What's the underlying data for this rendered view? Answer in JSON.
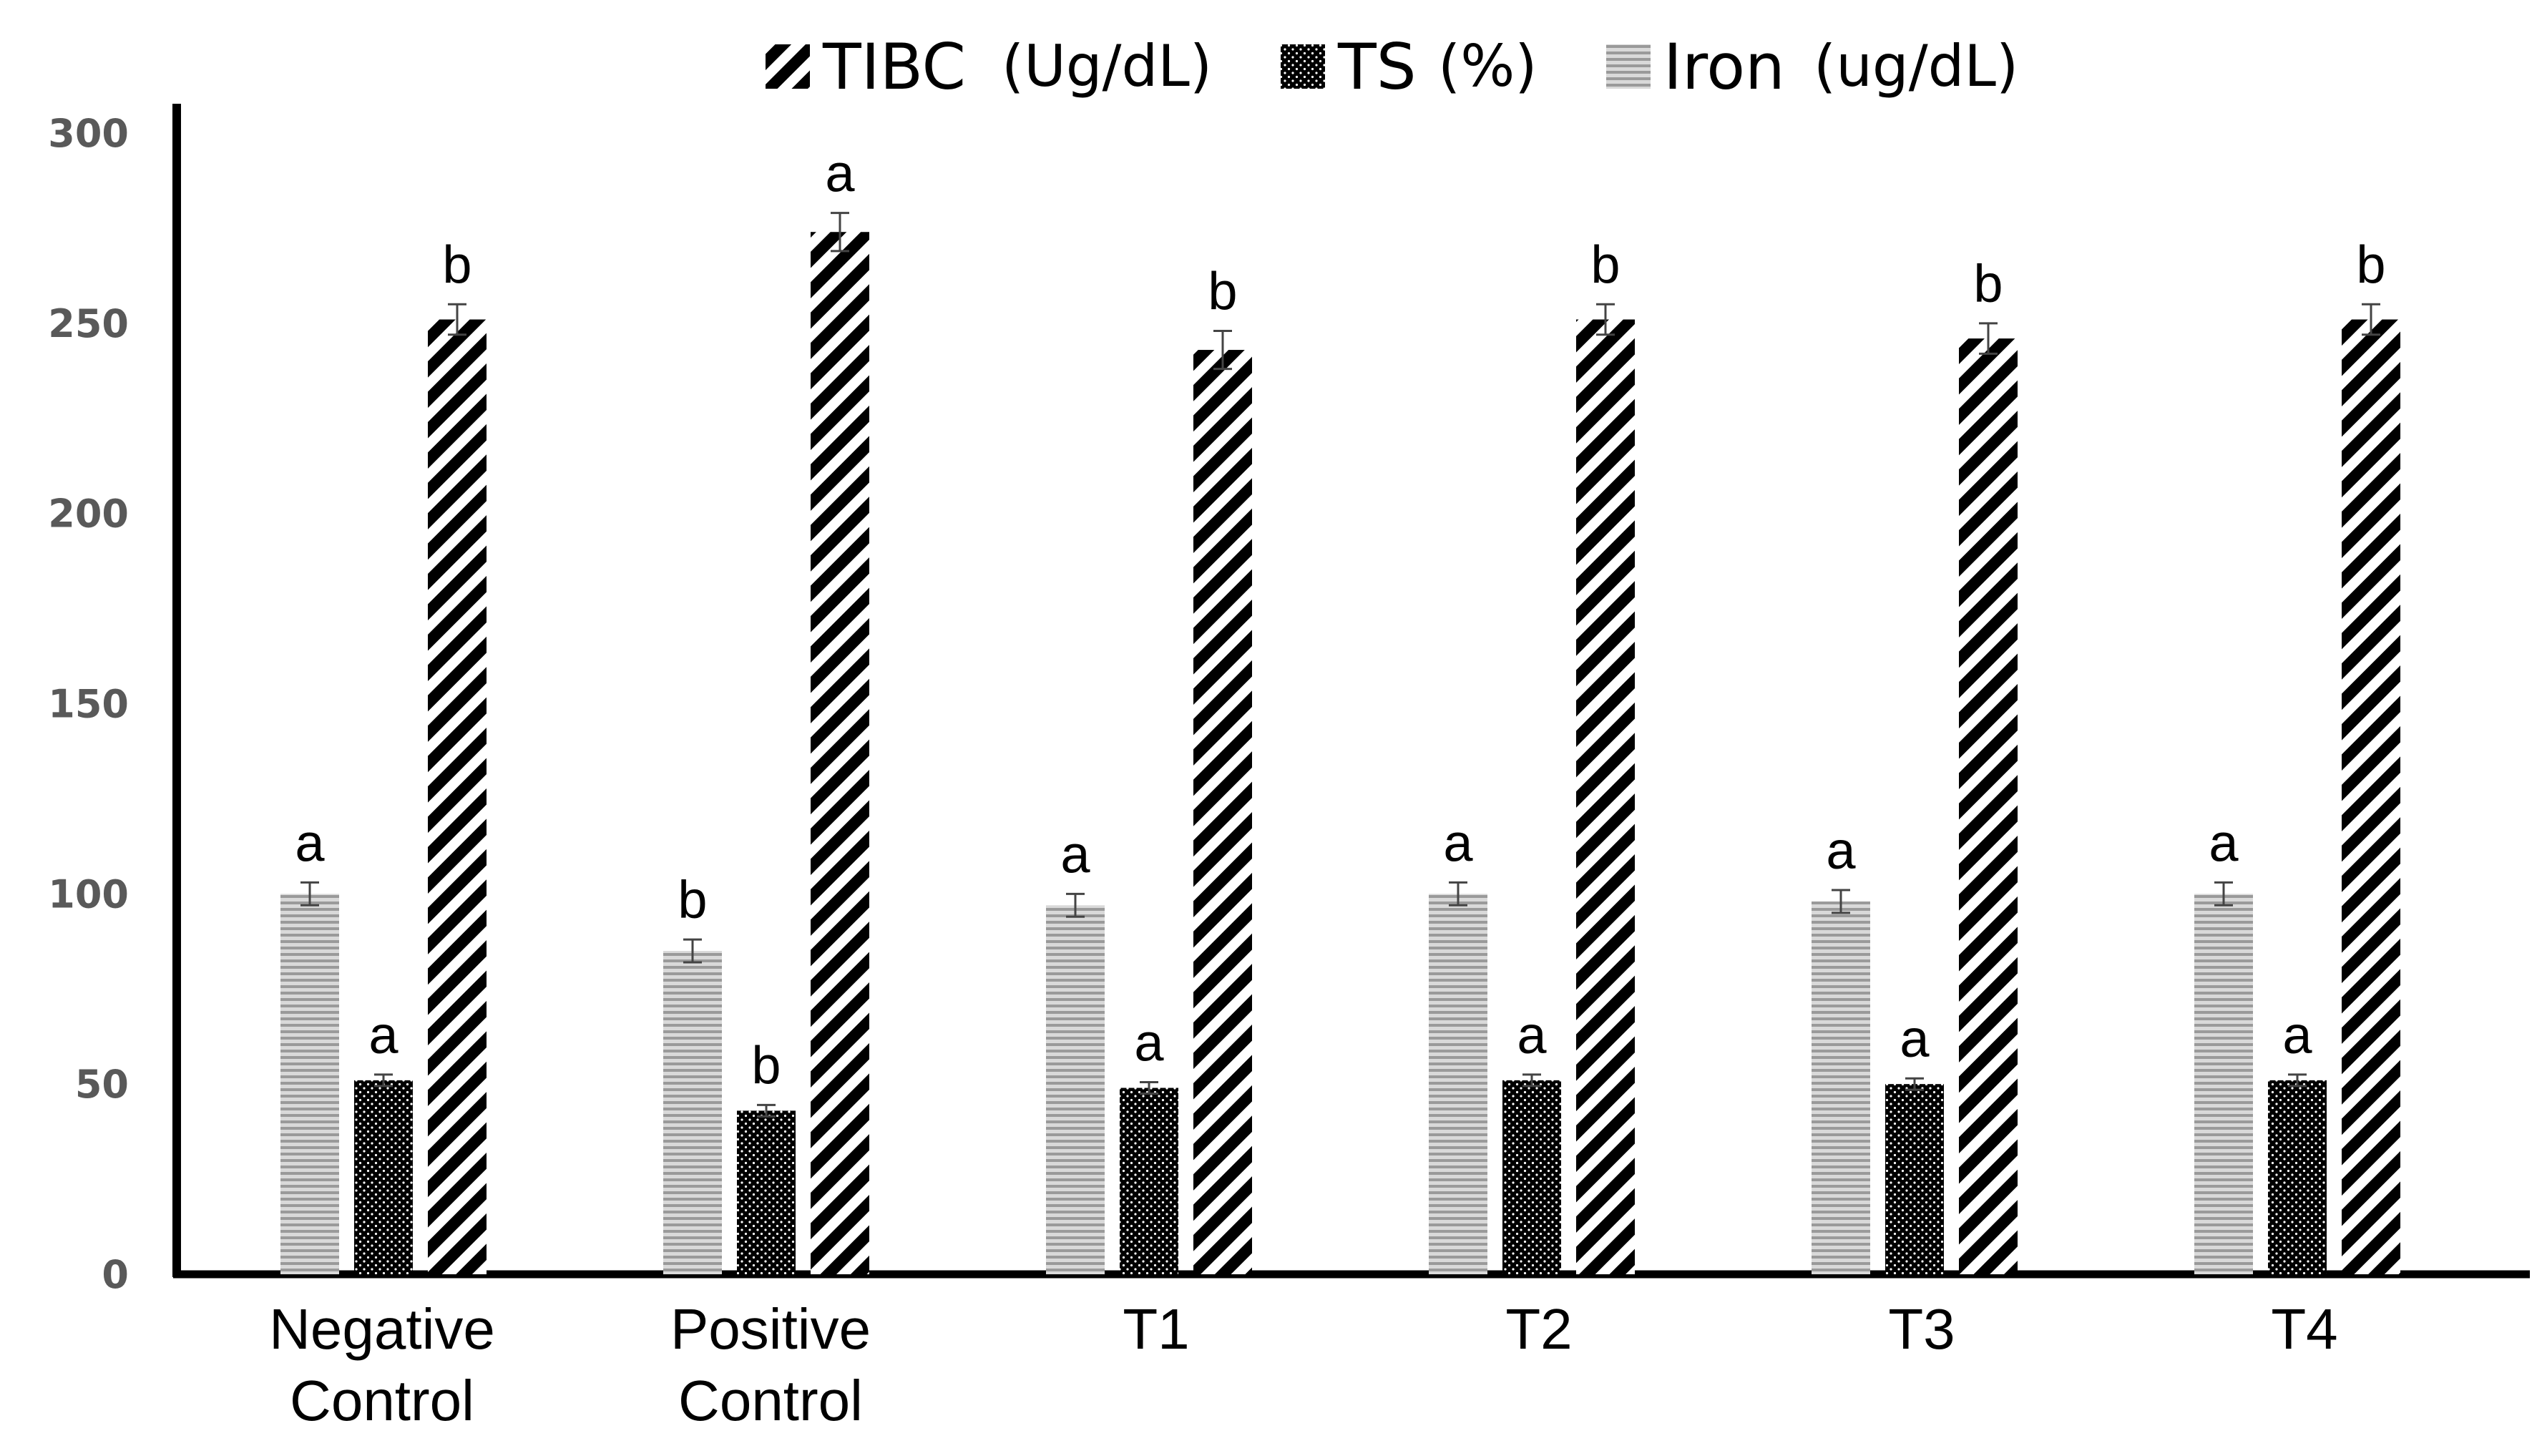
{
  "chart_data": {
    "type": "bar",
    "title": "",
    "xlabel": "",
    "ylabel": "",
    "ylim": [
      0,
      300
    ],
    "yticks": [
      "0",
      "50",
      "100",
      "150",
      "200",
      "250",
      "300"
    ],
    "grid": false,
    "legend_position": "top-center",
    "categories": [
      [
        "Negative",
        "Control"
      ],
      [
        "Positive",
        "Control"
      ],
      [
        "T1"
      ],
      [
        "T2"
      ],
      [
        "T3"
      ],
      [
        "T4"
      ]
    ],
    "legend": [
      {
        "series": "TIBC",
        "name": "TIBC",
        "unit": "(Ug/dL)"
      },
      {
        "series": "TS",
        "name": "TS",
        "unit": "(%)"
      },
      {
        "series": "Iron",
        "name": "Iron",
        "unit": "(ug/dL)"
      }
    ],
    "series": [
      {
        "name": "Iron",
        "pattern": "horizontal-lines",
        "values": [
          100,
          85,
          97,
          100,
          98,
          100
        ],
        "errors": [
          3,
          3,
          3,
          3,
          3,
          3
        ],
        "labels": [
          "a",
          "b",
          "a",
          "a",
          "a",
          "a"
        ]
      },
      {
        "name": "TS",
        "pattern": "dotted-black",
        "values": [
          51,
          43,
          49,
          51,
          50,
          51
        ],
        "errors": [
          1.5,
          1.5,
          1.5,
          1.5,
          1.5,
          1.5
        ],
        "labels": [
          "a",
          "b",
          "a",
          "a",
          "a",
          "a"
        ]
      },
      {
        "name": "TIBC",
        "pattern": "diagonal-stripes",
        "values": [
          251,
          274,
          243,
          251,
          246,
          251
        ],
        "errors": [
          4,
          5,
          5,
          4,
          4,
          4
        ],
        "labels": [
          "b",
          "a",
          "b",
          "b",
          "b",
          "b"
        ]
      }
    ]
  }
}
